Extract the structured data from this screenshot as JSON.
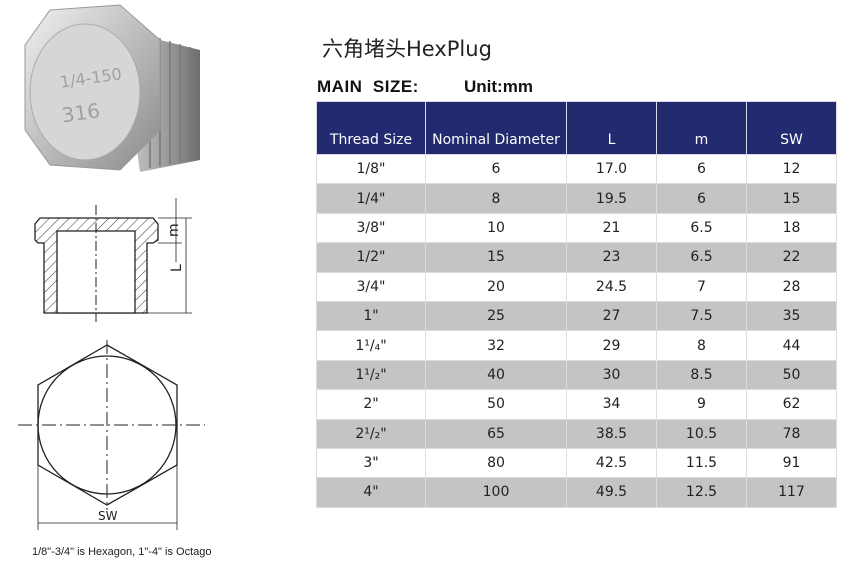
{
  "title": "六角堵头HexPlug",
  "main_size_label": "MAIN  SIZE:",
  "unit_label": "Unit:mm",
  "photo": {
    "emboss_lines": [
      "1/4-150",
      "316"
    ]
  },
  "drawing_labels": {
    "m": "m",
    "L": "L",
    "SW": "SW"
  },
  "table": {
    "headers": [
      "Thread Size",
      "Nominal Diameter",
      "L",
      "m",
      "SW"
    ],
    "rows": [
      {
        "thread": "1/8\"",
        "nominal": "6",
        "L": "17.0",
        "m": "6",
        "SW": "12"
      },
      {
        "thread": "1/4\"",
        "nominal": "8",
        "L": "19.5",
        "m": "6",
        "SW": "15"
      },
      {
        "thread": "3/8\"",
        "nominal": "10",
        "L": "21",
        "m": "6.5",
        "SW": "18"
      },
      {
        "thread": "1/2\"",
        "nominal": "15",
        "L": "23",
        "m": "6.5",
        "SW": "22"
      },
      {
        "thread": "3/4\"",
        "nominal": "20",
        "L": "24.5",
        "m": "7",
        "SW": "28"
      },
      {
        "thread": "1\"",
        "nominal": "25",
        "L": "27",
        "m": "7.5",
        "SW": "35"
      },
      {
        "thread": "1¹/₄\"",
        "nominal": "32",
        "L": "29",
        "m": "8",
        "SW": "44"
      },
      {
        "thread": "1¹/₂\"",
        "nominal": "40",
        "L": "30",
        "m": "8.5",
        "SW": "50"
      },
      {
        "thread": "2\"",
        "nominal": "50",
        "L": "34",
        "m": "9",
        "SW": "62"
      },
      {
        "thread": "2¹/₂\"",
        "nominal": "65",
        "L": "38.5",
        "m": "10.5",
        "SW": "78"
      },
      {
        "thread": "3\"",
        "nominal": "80",
        "L": "42.5",
        "m": "11.5",
        "SW": "91"
      },
      {
        "thread": "4\"",
        "nominal": "100",
        "L": "49.5",
        "m": "12.5",
        "SW": "117"
      }
    ]
  },
  "note": "1/8\"-3/4\" is Hexagon, 1\"-4\" is Octago",
  "colors": {
    "header_bg": "#232a70",
    "row_alt": "#c4c4c4"
  }
}
